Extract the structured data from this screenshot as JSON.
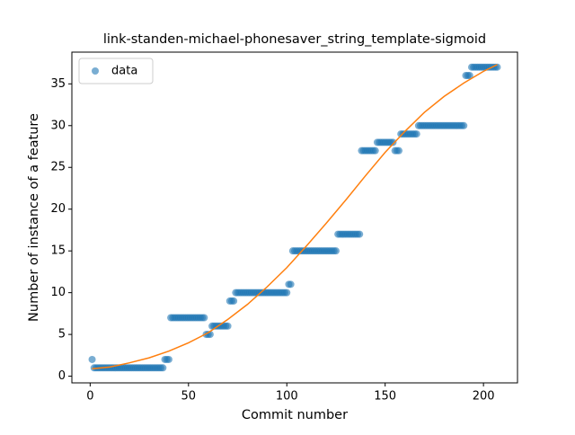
{
  "chart_data": {
    "type": "scatter",
    "title": "link-standen-michael-phonesaver_string_template-sigmoid",
    "x_label": "Commit number",
    "y_label": "Number of instance of a feature",
    "xlim": [
      -9.3,
      217.3
    ],
    "ylim": [
      -0.8,
      38.8
    ],
    "xticks": [
      0,
      50,
      100,
      150,
      200
    ],
    "yticks": [
      0,
      5,
      10,
      15,
      20,
      25,
      30,
      35
    ],
    "legend": "upper left",
    "series": [
      {
        "name": "data",
        "type": "scatter",
        "color": "#1f77b4",
        "x": [
          1,
          2,
          3,
          4,
          5,
          6,
          7,
          8,
          9,
          10,
          11,
          12,
          13,
          14,
          15,
          16,
          17,
          18,
          19,
          20,
          21,
          22,
          23,
          24,
          25,
          26,
          27,
          28,
          29,
          30,
          31,
          32,
          33,
          34,
          35,
          36,
          37,
          38,
          39,
          40,
          41,
          42,
          43,
          44,
          45,
          46,
          47,
          48,
          49,
          50,
          51,
          52,
          53,
          54,
          55,
          56,
          57,
          58,
          59,
          60,
          61,
          62,
          63,
          64,
          65,
          66,
          67,
          68,
          69,
          70,
          71,
          72,
          73,
          74,
          75,
          76,
          77,
          78,
          79,
          80,
          81,
          82,
          83,
          84,
          85,
          86,
          87,
          88,
          89,
          90,
          91,
          92,
          93,
          94,
          95,
          96,
          97,
          98,
          99,
          100,
          101,
          102,
          103,
          104,
          105,
          106,
          107,
          108,
          109,
          110,
          111,
          112,
          113,
          114,
          115,
          116,
          117,
          118,
          119,
          120,
          121,
          122,
          123,
          124,
          125,
          126,
          127,
          128,
          129,
          130,
          131,
          132,
          133,
          134,
          135,
          136,
          137,
          138,
          139,
          140,
          141,
          142,
          143,
          144,
          145,
          146,
          147,
          148,
          149,
          150,
          151,
          152,
          153,
          154,
          155,
          156,
          157,
          158,
          159,
          160,
          161,
          162,
          163,
          164,
          165,
          166,
          167,
          168,
          169,
          170,
          171,
          172,
          173,
          174,
          175,
          176,
          177,
          178,
          179,
          180,
          181,
          182,
          183,
          184,
          185,
          186,
          187,
          188,
          189,
          190,
          191,
          192,
          193,
          194,
          195,
          196,
          197,
          198,
          199,
          200,
          201,
          202,
          203,
          204,
          205,
          206,
          207
        ],
        "values": [
          2,
          1,
          1,
          1,
          1,
          1,
          1,
          1,
          1,
          1,
          1,
          1,
          1,
          1,
          1,
          1,
          1,
          1,
          1,
          1,
          1,
          1,
          1,
          1,
          1,
          1,
          1,
          1,
          1,
          1,
          1,
          1,
          1,
          1,
          1,
          1,
          1,
          2,
          2,
          2,
          7,
          7,
          7,
          7,
          7,
          7,
          7,
          7,
          7,
          7,
          7,
          7,
          7,
          7,
          7,
          7,
          7,
          7,
          5,
          5,
          5,
          6,
          6,
          6,
          6,
          6,
          6,
          6,
          6,
          6,
          9,
          9,
          9,
          10,
          10,
          10,
          10,
          10,
          10,
          10,
          10,
          10,
          10,
          10,
          10,
          10,
          10,
          10,
          10,
          10,
          10,
          10,
          10,
          10,
          10,
          10,
          10,
          10,
          10,
          10,
          11,
          11,
          15,
          15,
          15,
          15,
          15,
          15,
          15,
          15,
          15,
          15,
          15,
          15,
          15,
          15,
          15,
          15,
          15,
          15,
          15,
          15,
          15,
          15,
          15,
          17,
          17,
          17,
          17,
          17,
          17,
          17,
          17,
          17,
          17,
          17,
          17,
          27,
          27,
          27,
          27,
          27,
          27,
          27,
          27,
          28,
          28,
          28,
          28,
          28,
          28,
          28,
          28,
          28,
          27,
          27,
          27,
          29,
          29,
          29,
          29,
          29,
          29,
          29,
          29,
          29,
          30,
          30,
          30,
          30,
          30,
          30,
          30,
          30,
          30,
          30,
          30,
          30,
          30,
          30,
          30,
          30,
          30,
          30,
          30,
          30,
          30,
          30,
          30,
          30,
          36,
          36,
          36,
          37,
          37,
          37,
          37,
          37,
          37,
          37,
          37,
          37,
          37,
          37,
          37,
          37,
          37
        ]
      },
      {
        "type": "line",
        "color": "#ff7f0e",
        "x": [
          1,
          10,
          20,
          30,
          40,
          50,
          60,
          70,
          80,
          90,
          100,
          110,
          120,
          130,
          140,
          150,
          160,
          170,
          180,
          190,
          200,
          207
        ],
        "values": [
          0.9,
          1.1,
          1.6,
          2.2,
          3.0,
          4.0,
          5.2,
          6.8,
          8.6,
          10.7,
          13.0,
          15.6,
          18.3,
          21.1,
          24.0,
          26.8,
          29.3,
          31.6,
          33.5,
          35.1,
          36.5,
          37.3
        ]
      }
    ]
  }
}
